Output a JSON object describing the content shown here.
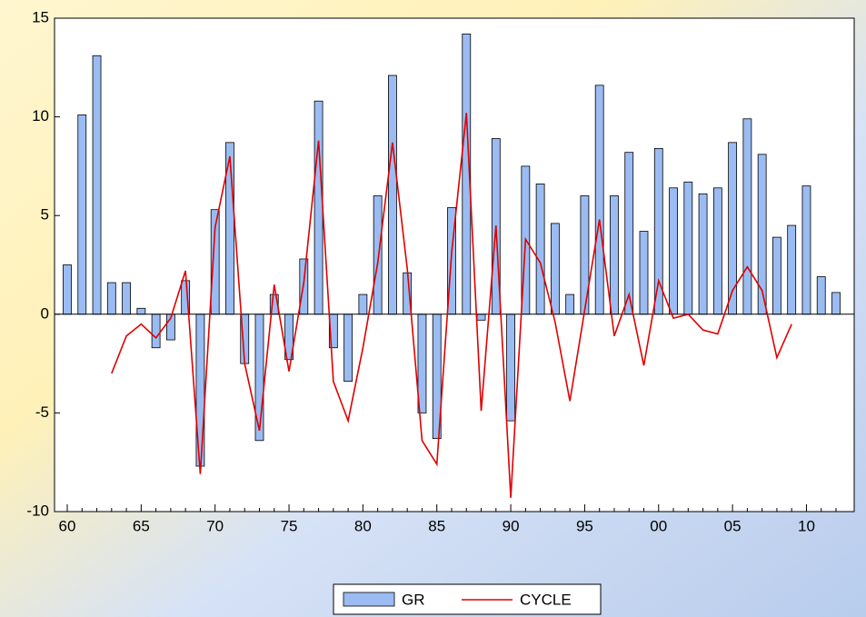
{
  "chart_data": {
    "type": "bar-line",
    "categories": [
      "60",
      null,
      null,
      null,
      null,
      "65",
      null,
      null,
      null,
      null,
      "70",
      null,
      null,
      null,
      null,
      "75",
      null,
      null,
      null,
      null,
      "80",
      null,
      null,
      null,
      null,
      "85",
      null,
      null,
      null,
      null,
      "90",
      null,
      null,
      null,
      null,
      "95",
      null,
      null,
      null,
      null,
      "00",
      null,
      null,
      null,
      null,
      "05",
      null,
      null,
      null,
      null,
      "10",
      null,
      null
    ],
    "series": [
      {
        "name": "GR",
        "color": "#9bbcf2",
        "type": "bar",
        "values": [
          2.5,
          10.1,
          13.1,
          1.6,
          1.6,
          0.3,
          -1.7,
          -1.3,
          1.7,
          -7.7,
          5.3,
          8.7,
          -2.5,
          -6.4,
          1.0,
          -2.3,
          2.8,
          10.8,
          -1.7,
          -3.4,
          1.0,
          6.0,
          12.1,
          2.1,
          -5.0,
          -6.3,
          5.4,
          14.2,
          -0.3,
          8.9,
          -5.4,
          7.5,
          6.6,
          4.6,
          1.0,
          6.0,
          11.6,
          6.0,
          8.2,
          4.2,
          8.4,
          6.4,
          6.7,
          6.1,
          6.4,
          8.7,
          9.9,
          8.1,
          3.9,
          4.5,
          6.5,
          1.9,
          1.1
        ]
      },
      {
        "name": "CYCLE",
        "color": "#e00000",
        "type": "line",
        "values": [
          null,
          null,
          null,
          -3.0,
          -1.1,
          -0.5,
          -1.2,
          -0.2,
          2.2,
          -8.1,
          4.4,
          8.0,
          -2.5,
          -5.9,
          1.5,
          -2.9,
          1.6,
          8.8,
          -3.4,
          -5.4,
          -1.7,
          2.6,
          8.7,
          2.3,
          -6.4,
          -7.6,
          3.1,
          10.2,
          -4.9,
          4.5,
          -9.3,
          3.8,
          2.6,
          -0.4,
          -4.4,
          0.2,
          4.8,
          -1.1,
          1.0,
          -2.6,
          1.7,
          -0.2,
          0.0,
          -0.8,
          -1.0,
          1.2,
          2.4,
          1.2,
          -2.2,
          -0.5,
          null,
          null,
          null
        ]
      }
    ],
    "ylim": [
      -10,
      15
    ],
    "yticks": [
      -10,
      -5,
      0,
      5,
      10,
      15
    ],
    "grid": false
  }
}
